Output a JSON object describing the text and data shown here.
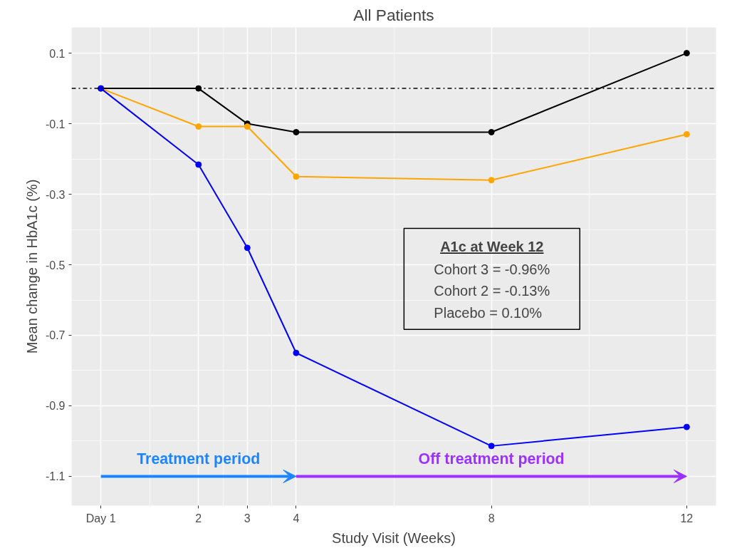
{
  "chart_data": {
    "type": "line",
    "title": "All Patients",
    "xlabel": "Study Visit (Weeks)",
    "ylabel": "Mean change in HbA1c (%)",
    "x": [
      0,
      2,
      3,
      4,
      8,
      12
    ],
    "series": [
      {
        "color": "#000000",
        "values": [
          0,
          0,
          -0.1,
          -0.124,
          -0.124,
          0.1
        ]
      },
      {
        "color": "#ffa500",
        "values": [
          0,
          -0.108,
          -0.108,
          -0.25,
          -0.26,
          -0.13
        ]
      },
      {
        "color": "#0000ff",
        "values": [
          0,
          -0.216,
          -0.452,
          -0.75,
          -1.014,
          -0.96
        ]
      }
    ],
    "xlim": [
      -0.6,
      12.6
    ],
    "xticks": [
      {
        "value": 0,
        "label": "Day 1"
      },
      2,
      3,
      4,
      8,
      12
    ],
    "ylim": [
      -1.183,
      0.173
    ],
    "yticks": [
      -1.1,
      -0.9,
      -0.7,
      -0.5,
      -0.3,
      -0.1,
      0.1
    ],
    "grid": true,
    "marker": "circle",
    "line_style": "solid",
    "ref_lines": [
      {
        "axis": "y",
        "value": 0,
        "color": "#000000",
        "line_style": "dashdot"
      }
    ],
    "annotations": [
      "Treatment period",
      "Off treatment period",
      "A1c at Week 12",
      "Cohort 3 = -0.96%",
      "Cohort 2 = -0.13%",
      "Placebo  =  0.10%"
    ]
  }
}
